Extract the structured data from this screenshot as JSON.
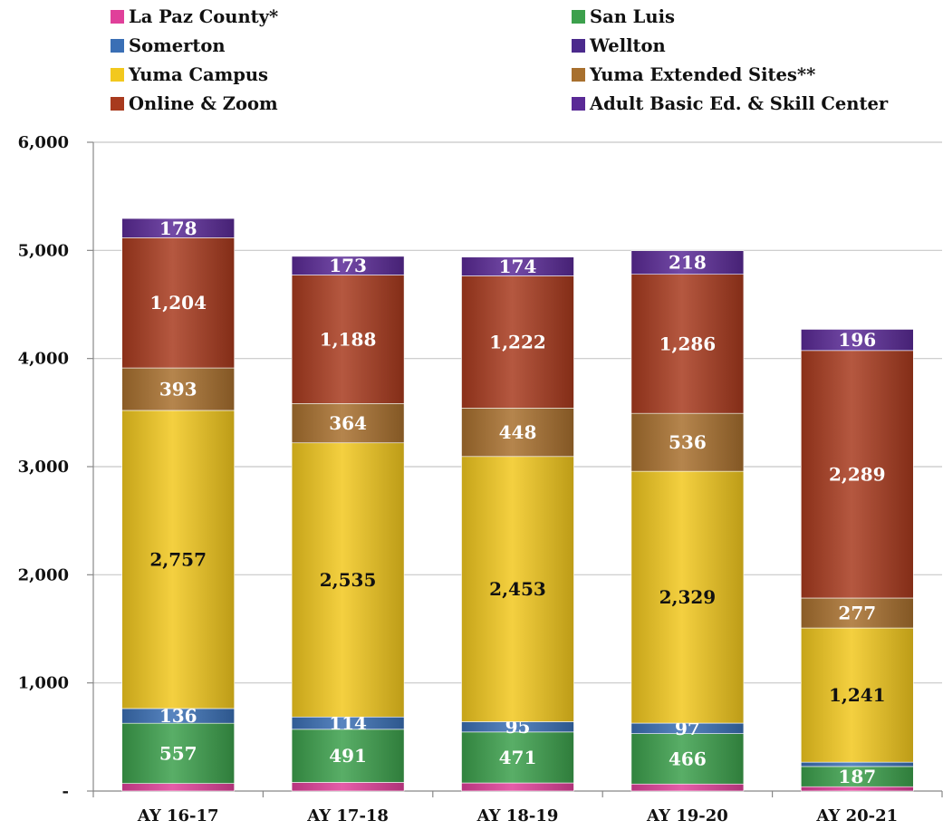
{
  "chart_data": {
    "type": "bar",
    "stacked": true,
    "title": "",
    "xlabel": "",
    "ylabel": "",
    "ylim": [
      0,
      6000
    ],
    "yticks": [
      0,
      1000,
      2000,
      3000,
      4000,
      5000,
      6000
    ],
    "ytick_labels": [
      "-",
      "1,000",
      "2,000",
      "3,000",
      "4,000",
      "5,000",
      "6,000"
    ],
    "grid": "horizontal",
    "legend_position": "top",
    "categories": [
      "AY 16-17",
      "AY 17-18",
      "AY 18-19",
      "AY 19-20",
      "AY 20-21"
    ],
    "series": [
      {
        "name": "La Paz County*",
        "color": "#E0409A",
        "values": [
          70,
          80,
          75,
          65,
          40
        ],
        "show_labels": false
      },
      {
        "name": "San Luis",
        "color": "#3CA04C",
        "values": [
          557,
          491,
          471,
          466,
          187
        ],
        "show_labels": true
      },
      {
        "name": "Somerton",
        "color": "#3A6FB5",
        "values": [
          136,
          114,
          95,
          97,
          40
        ],
        "show_labels": true,
        "label_min": 50
      },
      {
        "name": "Wellton",
        "color": "#4B2A8C",
        "values": [
          0,
          0,
          0,
          0,
          0
        ],
        "show_labels": false
      },
      {
        "name": "Yuma Campus",
        "color": "#F2C81E",
        "values": [
          2757,
          2535,
          2453,
          2329,
          1241
        ],
        "show_labels": true
      },
      {
        "name": "Yuma Extended Sites**",
        "color": "#A8702E",
        "values": [
          393,
          364,
          448,
          536,
          277
        ],
        "show_labels": true
      },
      {
        "name": "Online & Zoom",
        "color": "#A83A1E",
        "values": [
          1204,
          1188,
          1222,
          1286,
          2289
        ],
        "show_labels": true
      },
      {
        "name": "Adult Basic Ed. & Skill Center",
        "color": "#5A2A96",
        "values": [
          178,
          173,
          174,
          218,
          196
        ],
        "show_labels": true
      }
    ]
  }
}
